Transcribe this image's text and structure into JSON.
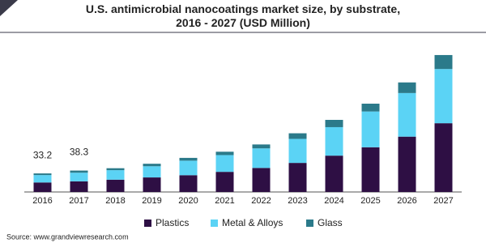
{
  "chart_data": {
    "type": "stacked-bar",
    "title": "U.S. antimicrobial nanocoatings market size, by substrate, 2016 - 2027 (USD Million)",
    "categories": [
      "2016",
      "2017",
      "2018",
      "2019",
      "2020",
      "2021",
      "2022",
      "2023",
      "2024",
      "2025",
      "2026",
      "2027"
    ],
    "series": [
      {
        "name": "Plastics",
        "color": "#2e0f44",
        "values": [
          17,
          19,
          22,
          26,
          30,
          36,
          43,
          52,
          65,
          80,
          99,
          123
        ]
      },
      {
        "name": "Metal & Alloys",
        "color": "#5bd3f5",
        "values": [
          13.2,
          15.5,
          17,
          20,
          26,
          30,
          35,
          43,
          51,
          64,
          78,
          97
        ]
      },
      {
        "name": "Glass",
        "color": "#2b7a8a",
        "values": [
          3,
          3.8,
          3.5,
          4.5,
          5,
          6,
          7,
          10,
          13,
          14,
          19,
          25
        ]
      }
    ],
    "totals": [
      33.2,
      38.3,
      null,
      null,
      null,
      null,
      null,
      null,
      null,
      null,
      null,
      null
    ],
    "source": "Source: www.grandviewresearch.com"
  }
}
